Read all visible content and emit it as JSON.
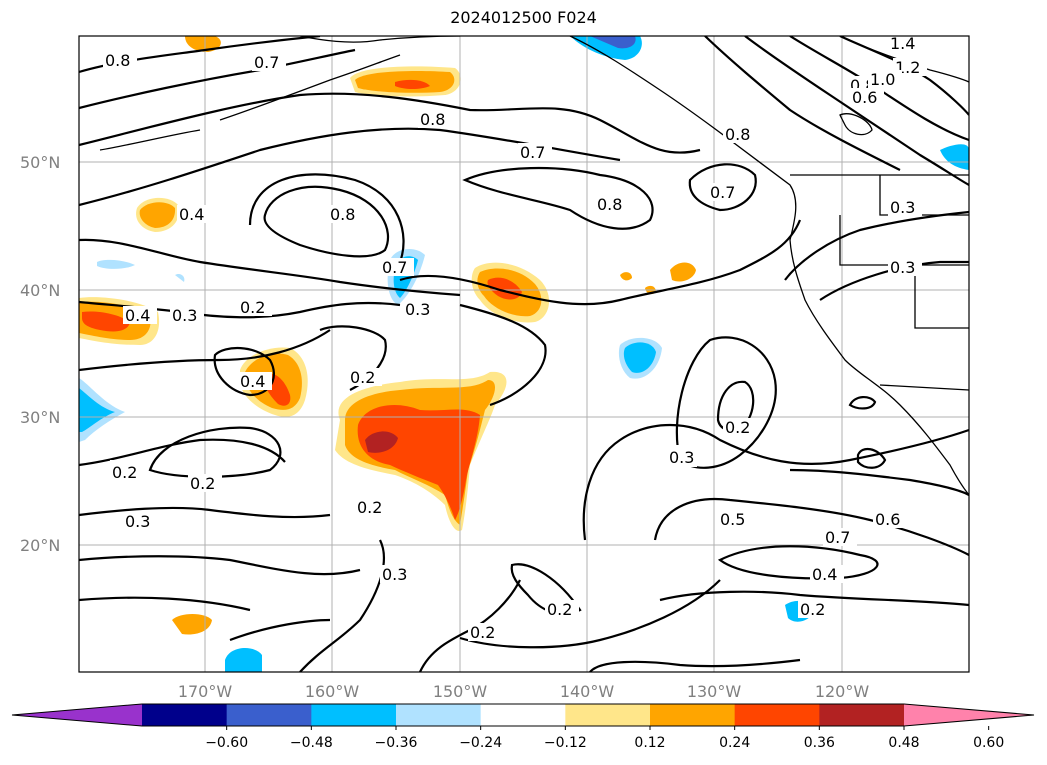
{
  "title": "2024012500 F024",
  "lat_labels": [
    "50°N",
    "40°N",
    "30°N",
    "20°N"
  ],
  "lon_labels": [
    "170°W",
    "160°W",
    "150°W",
    "140°W",
    "130°W",
    "120°W"
  ],
  "colorbar": {
    "ticks": [
      "−0.60",
      "−0.48",
      "−0.36",
      "−0.24",
      "−0.12",
      "0.12",
      "0.24",
      "0.36",
      "0.48",
      "0.60"
    ],
    "colors": [
      "#9932cc",
      "#00008b",
      "#3a5fcd",
      "#00bfff",
      "#b0e2ff",
      "#ffffff",
      "#ffe68a",
      "#ffa500",
      "#ff4500",
      "#b22222",
      "#ff82ab"
    ]
  },
  "contour_labels": [
    "0.8",
    "0.7",
    "0.8",
    "0.7",
    "0.8",
    "0.8",
    "0.4",
    "0.7",
    "0.7",
    "0.8",
    "1.4",
    "1.2",
    "1.0",
    "0.8",
    "0.6",
    "0.3",
    "0.3",
    "0.2",
    "0.3",
    "0.4",
    "0.3",
    "0.2",
    "0.4",
    "0.2",
    "0.2",
    "0.3",
    "0.2",
    "0.2",
    "0.3",
    "0.2",
    "0.5",
    "0.7",
    "0.6",
    "0.4",
    "0.2",
    "0.3",
    "0.2"
  ]
}
